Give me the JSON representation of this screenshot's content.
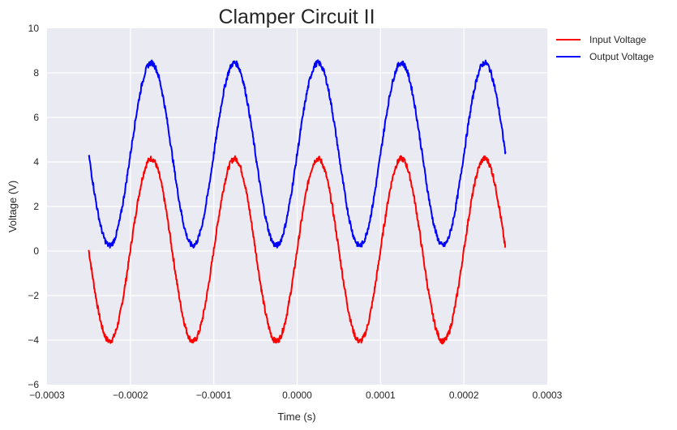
{
  "chart_data": {
    "type": "line",
    "title": "Clamper Circuit II",
    "xlabel": "Time (s)",
    "ylabel": "Voltage (V)",
    "xlim": [
      -0.0003,
      0.0003
    ],
    "ylim": [
      -6,
      10
    ],
    "x_ticks": [
      "−0.0003",
      "−0.0002",
      "−0.0001",
      "0.0000",
      "0.0001",
      "0.0002",
      "0.0003"
    ],
    "y_ticks": [
      "−6",
      "−4",
      "−2",
      "0",
      "2",
      "4",
      "6",
      "8",
      "10"
    ],
    "grid": true,
    "legend_position": "outside-top-right",
    "background": "#eaeaf2",
    "x_range": [
      -0.00025,
      0.00025
    ],
    "signal": "sine",
    "period": 0.0001,
    "series": [
      {
        "name": "Input Voltage",
        "color": "#ff0000",
        "amplitude": 4.1,
        "offset": 0.05,
        "peak_time": -0.000175,
        "noise": 0.25
      },
      {
        "name": "Output Voltage",
        "color": "#0000ff",
        "amplitude": 4.1,
        "offset": 4.35,
        "peak_time": -0.000175,
        "noise": 0.25
      }
    ]
  }
}
